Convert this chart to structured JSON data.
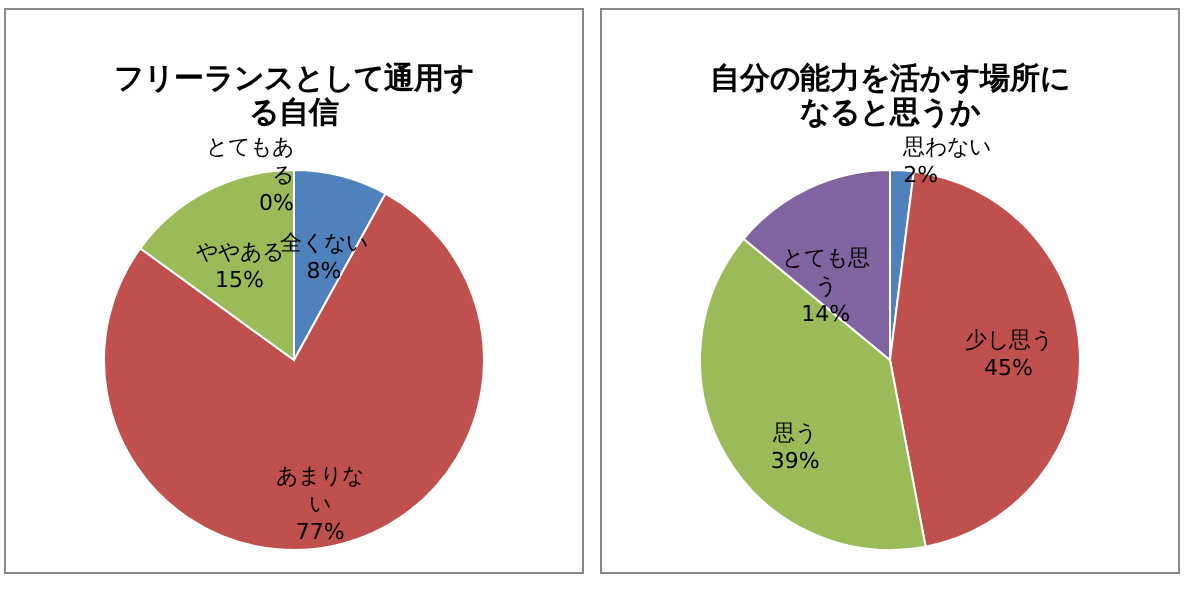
{
  "chart_data": [
    {
      "type": "pie",
      "title": "フリーランスとして通用する自信",
      "categories": [
        "全くない",
        "あまりない",
        "ややある",
        "とてもある"
      ],
      "values": [
        8,
        77,
        15,
        0
      ],
      "value_labels": [
        "8%",
        "77%",
        "15%",
        "0%"
      ],
      "colors": [
        "#4f81bd",
        "#c0504d",
        "#9bbb59",
        "#8064a2"
      ],
      "legend": false
    },
    {
      "type": "pie",
      "title": "自分の能力を活かす場所になると思うか",
      "categories": [
        "思わない",
        "少し思う",
        "思う",
        "とても思う"
      ],
      "values": [
        2,
        45,
        39,
        14
      ],
      "value_labels": [
        "2%",
        "45%",
        "39%",
        "14%"
      ],
      "colors": [
        "#4f81bd",
        "#c0504d",
        "#9bbb59",
        "#8064a2"
      ],
      "legend": false
    }
  ]
}
